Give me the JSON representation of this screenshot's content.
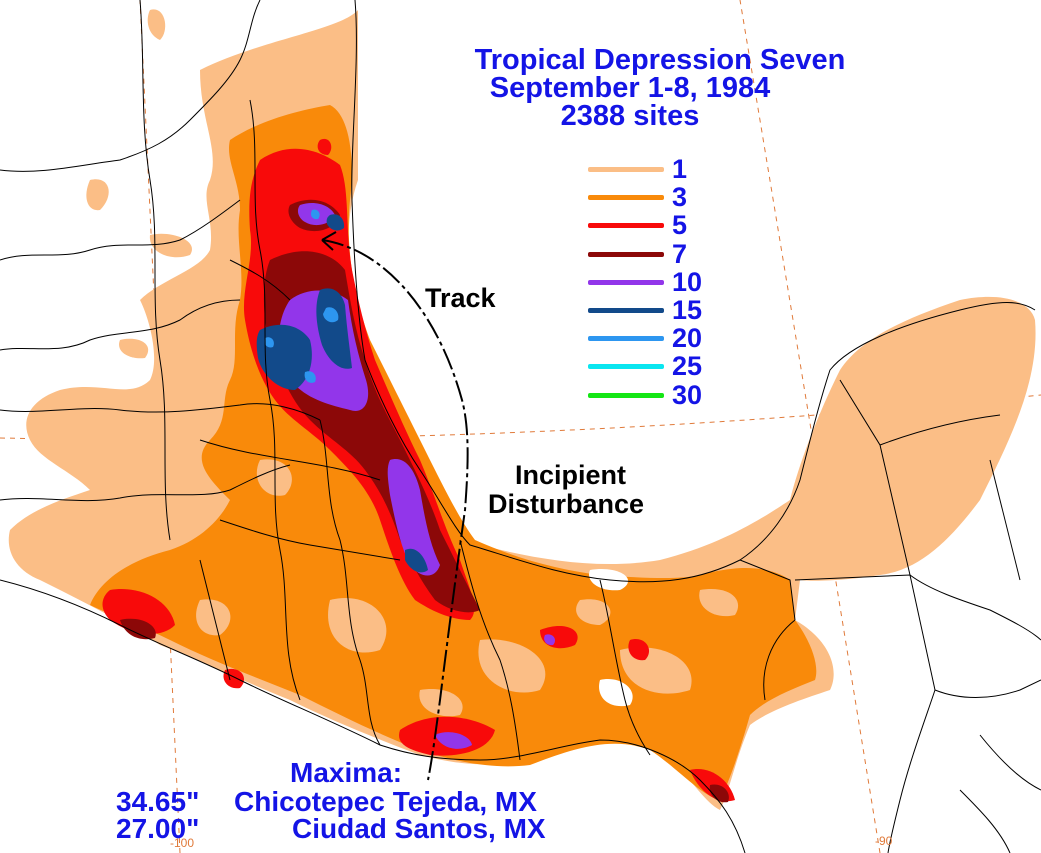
{
  "title": {
    "line1": "Tropical Depression Seven",
    "line2": "September 1-8, 1984",
    "line3": "2388 sites"
  },
  "legend": {
    "items": [
      {
        "label": "1",
        "color": "#fbbe86"
      },
      {
        "label": "3",
        "color": "#f98a0a"
      },
      {
        "label": "5",
        "color": "#f80a0a"
      },
      {
        "label": "7",
        "color": "#8c0808"
      },
      {
        "label": "10",
        "color": "#9236ea"
      },
      {
        "label": "15",
        "color": "#124a8a"
      },
      {
        "label": "20",
        "color": "#2d96f0"
      },
      {
        "label": "25",
        "color": "#0ae6f0"
      },
      {
        "label": "30",
        "color": "#14e614"
      }
    ]
  },
  "annotations": {
    "track": "Track",
    "incipient_line1": "Incipient",
    "incipient_line2": "Disturbance"
  },
  "maxima": {
    "heading": "Maxima:",
    "entries": [
      {
        "amount": "34.65\"",
        "location": "Chicotepec Tejeda, MX"
      },
      {
        "amount": "27.00\"",
        "location": "Ciudad Santos, MX"
      }
    ]
  },
  "axis_ticks": {
    "left": "-100",
    "right": "-90"
  },
  "colors": {
    "text_blue": "#1414e6",
    "grid_lines": "#e07a3a",
    "borders": "#000000"
  }
}
